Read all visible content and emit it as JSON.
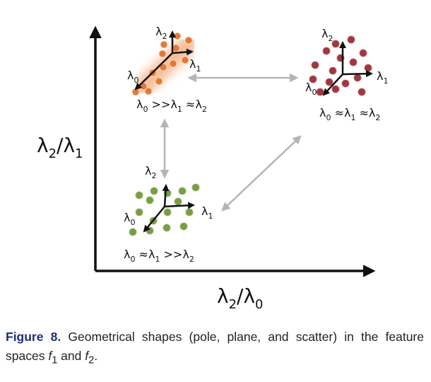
{
  "axes": {
    "x_label": {
      "base": "λ",
      "s1": "2",
      "mid": "/λ",
      "s2": "0"
    },
    "y_label": {
      "base": "λ",
      "s1": "2",
      "mid": "/λ",
      "s2": "1"
    }
  },
  "clusters": {
    "pole": {
      "dot_color": "#e0742c",
      "halo_color": "#f4a673",
      "axes_labels": {
        "l2": "2",
        "l1": "1",
        "l0": "0"
      },
      "relation": {
        "a": "0",
        "op1": " >>λ",
        "b": "1",
        "op2": " ≈λ",
        "c": "2"
      }
    },
    "scatter": {
      "dot_color": "#9b2b35",
      "axes_labels": {
        "l2": "2",
        "l1": "1",
        "l0": "0"
      },
      "relation": {
        "a": "0",
        "op1": " ≈λ",
        "b": "1",
        "op2": " ≈λ",
        "c": "2"
      }
    },
    "plane": {
      "dot_color": "#6f9a3a",
      "axes_labels": {
        "l2": "2",
        "l1": "1",
        "l0": "0"
      },
      "relation": {
        "a": "0",
        "op1": " ≈λ",
        "b": "1",
        "op2": " >>λ",
        "c": "2"
      }
    }
  },
  "caption": {
    "label": "Figure 8.",
    "text_a": " Geometrical shapes (pole, plane, and scatter) in the feature spaces ",
    "f": "f",
    "sub1": "1",
    "and": " and ",
    "sub2": "2",
    "end": "."
  },
  "colors": {
    "arrow_gray": "#b5b5b5",
    "axis": "#111111"
  }
}
